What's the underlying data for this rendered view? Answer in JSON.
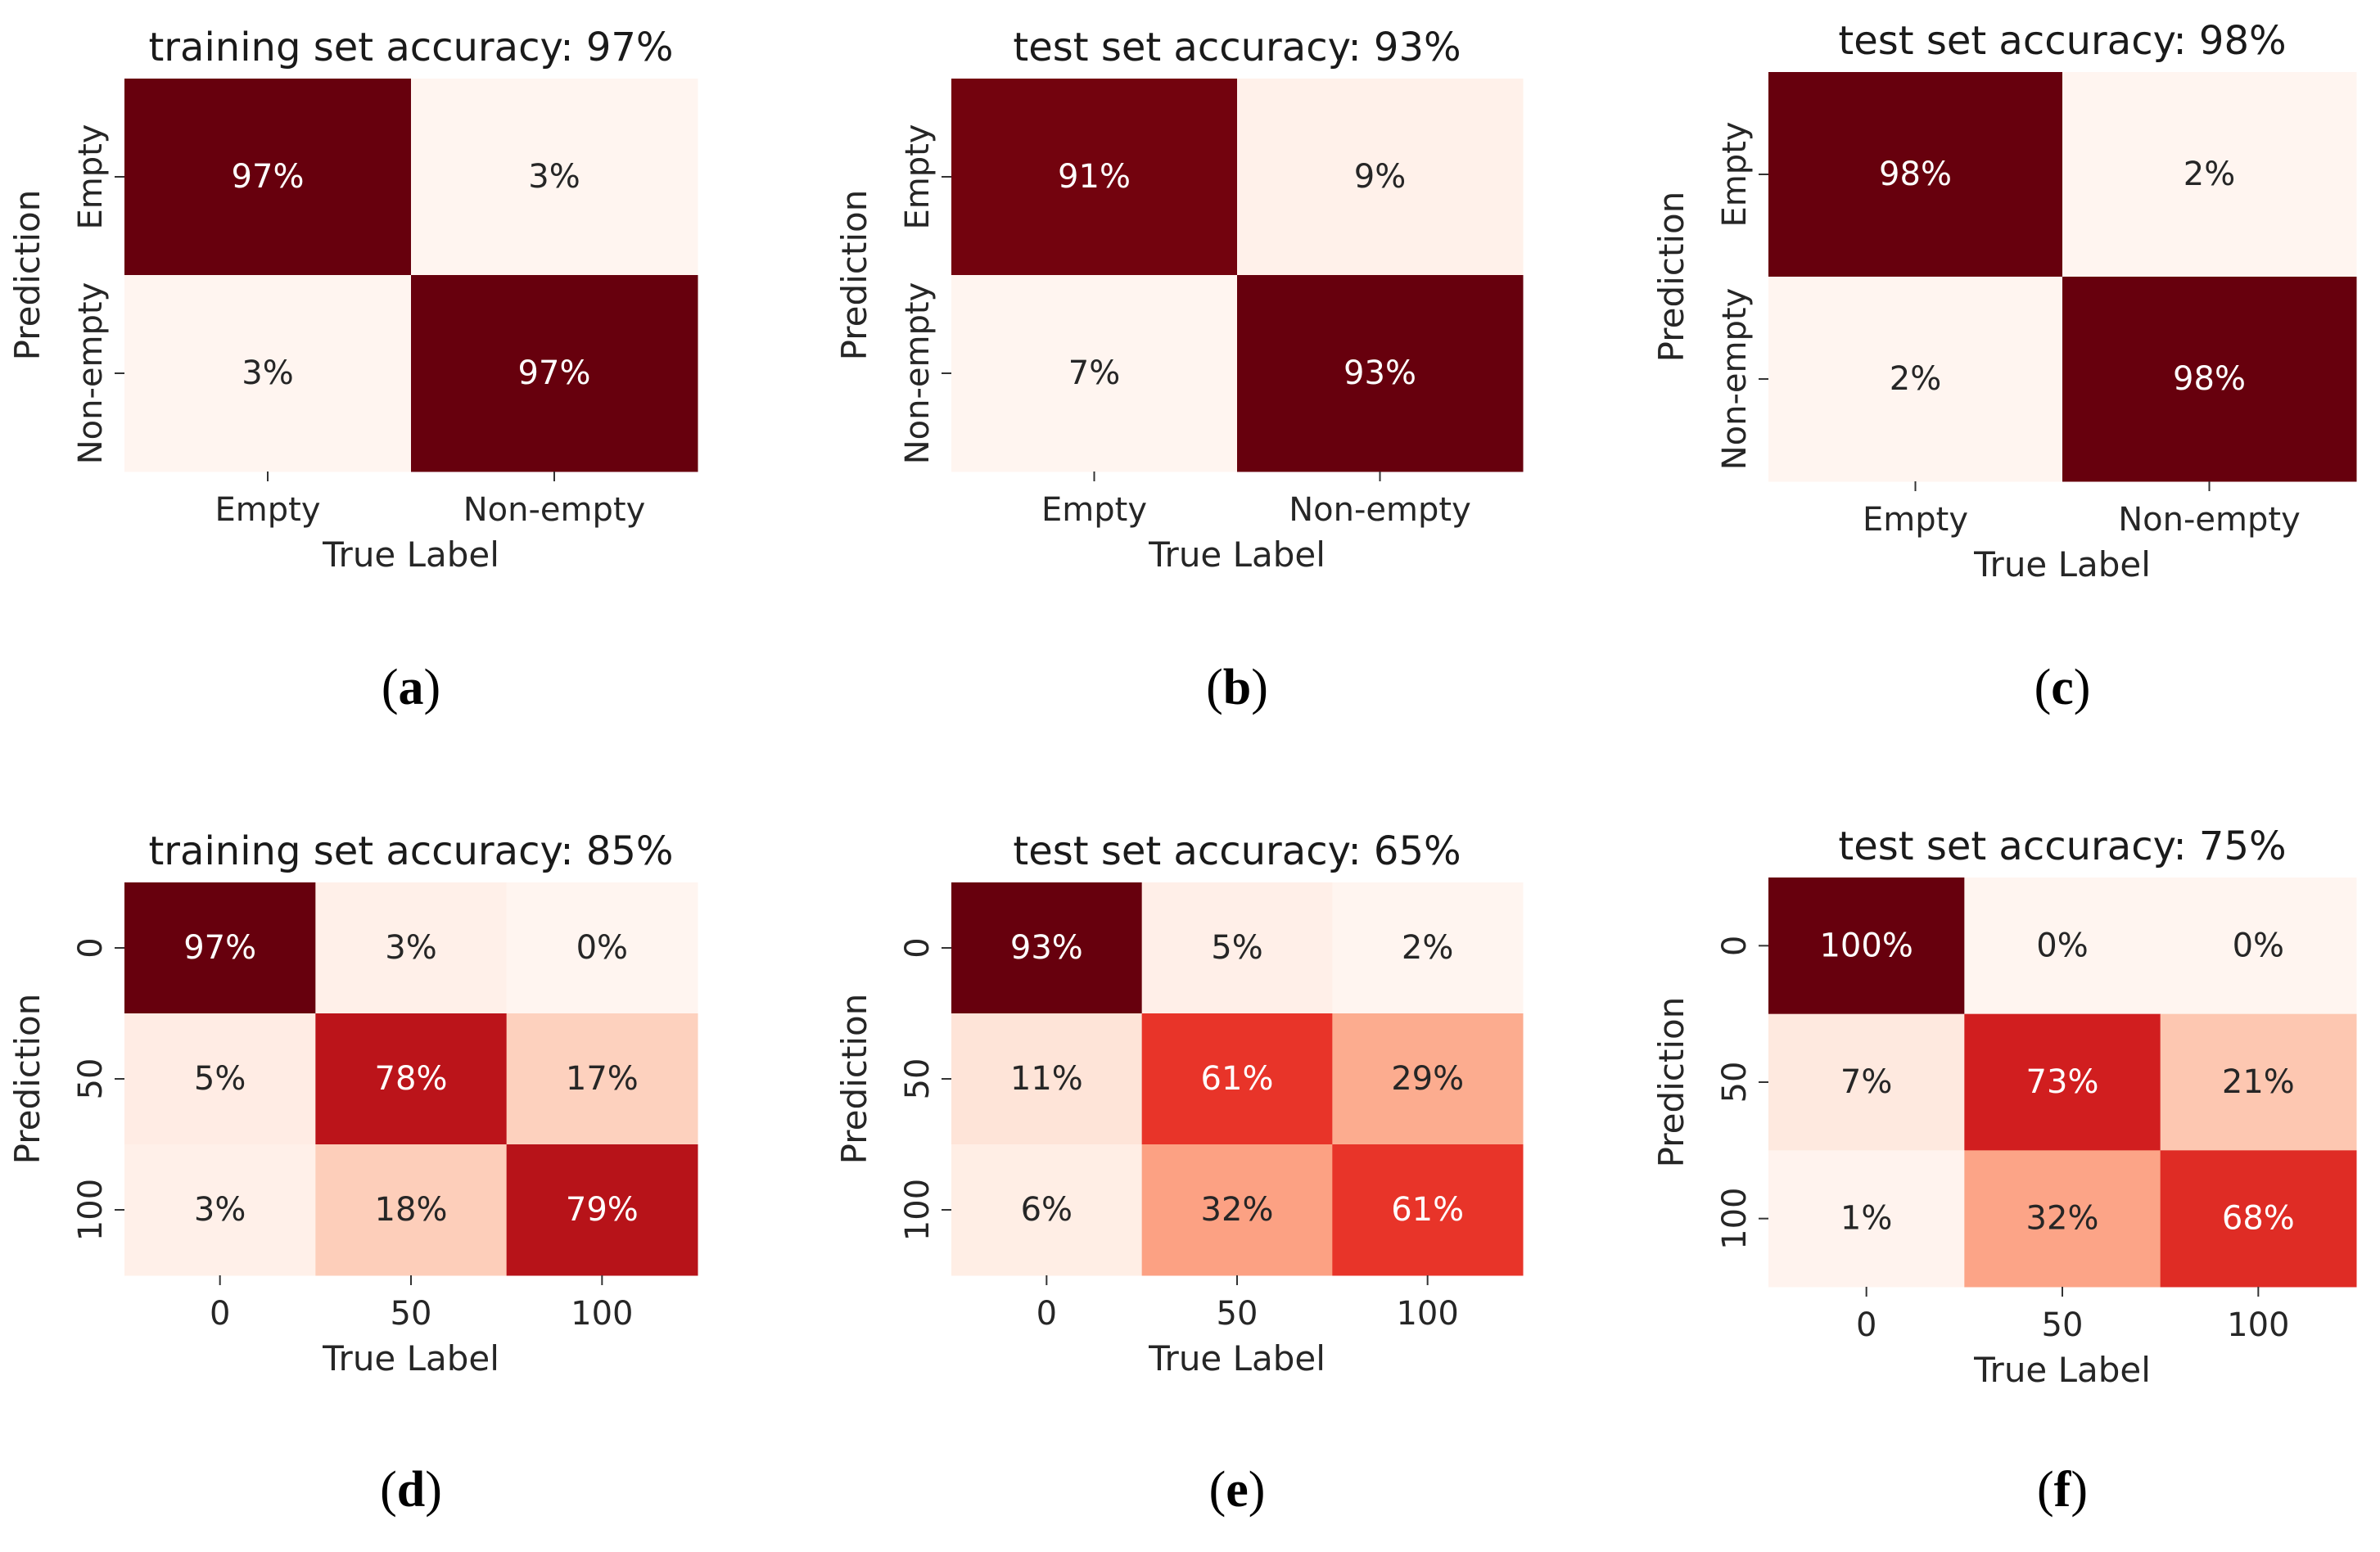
{
  "chart_data": [
    {
      "type": "heatmap",
      "panel": "a",
      "title": "training set accuracy: 97%",
      "xlabel": "True Label",
      "ylabel": "Prediction",
      "x_categories": [
        "Empty",
        "Non-empty"
      ],
      "y_categories": [
        "Empty",
        "Non-empty"
      ],
      "values": [
        [
          97,
          3
        ],
        [
          3,
          97
        ]
      ],
      "labels": [
        [
          "97%",
          "3%"
        ],
        [
          "3%",
          "97%"
        ]
      ]
    },
    {
      "type": "heatmap",
      "panel": "b",
      "title": "test set accuracy: 93%",
      "xlabel": "True Label",
      "ylabel": "Prediction",
      "x_categories": [
        "Empty",
        "Non-empty"
      ],
      "y_categories": [
        "Empty",
        "Non-empty"
      ],
      "values": [
        [
          91,
          9
        ],
        [
          7,
          93
        ]
      ],
      "labels": [
        [
          "91%",
          "9%"
        ],
        [
          "7%",
          "93%"
        ]
      ]
    },
    {
      "type": "heatmap",
      "panel": "c",
      "title": "test set accuracy: 98%",
      "xlabel": "True Label",
      "ylabel": "Prediction",
      "x_categories": [
        "Empty",
        "Non-empty"
      ],
      "y_categories": [
        "Empty",
        "Non-empty"
      ],
      "values": [
        [
          98,
          2
        ],
        [
          2,
          98
        ]
      ],
      "labels": [
        [
          "98%",
          "2%"
        ],
        [
          "2%",
          "98%"
        ]
      ]
    },
    {
      "type": "heatmap",
      "panel": "d",
      "title": "training set accuracy: 85%",
      "xlabel": "True Label",
      "ylabel": "Prediction",
      "x_categories": [
        "0",
        "50",
        "100"
      ],
      "y_categories": [
        "0",
        "50",
        "100"
      ],
      "values": [
        [
          97,
          3,
          0
        ],
        [
          5,
          78,
          17
        ],
        [
          3,
          18,
          79
        ]
      ],
      "labels": [
        [
          "97%",
          "3%",
          "0%"
        ],
        [
          "5%",
          "78%",
          "17%"
        ],
        [
          "3%",
          "18%",
          "79%"
        ]
      ]
    },
    {
      "type": "heatmap",
      "panel": "e",
      "title": "test set accuracy: 65%",
      "xlabel": "True Label",
      "ylabel": "Prediction",
      "x_categories": [
        "0",
        "50",
        "100"
      ],
      "y_categories": [
        "0",
        "50",
        "100"
      ],
      "values": [
        [
          93,
          5,
          2
        ],
        [
          11,
          61,
          29
        ],
        [
          6,
          32,
          61
        ]
      ],
      "labels": [
        [
          "93%",
          "5%",
          "2%"
        ],
        [
          "11%",
          "61%",
          "29%"
        ],
        [
          "6%",
          "32%",
          "61%"
        ]
      ]
    },
    {
      "type": "heatmap",
      "panel": "f",
      "title": "test set accuracy: 75%",
      "xlabel": "True Label",
      "ylabel": "Prediction",
      "x_categories": [
        "0",
        "50",
        "100"
      ],
      "y_categories": [
        "0",
        "50",
        "100"
      ],
      "values": [
        [
          100,
          0,
          0
        ],
        [
          7,
          73,
          21
        ],
        [
          1,
          32,
          68
        ]
      ],
      "labels": [
        [
          "100%",
          "0%",
          "0%"
        ],
        [
          "7%",
          "73%",
          "21%"
        ],
        [
          "1%",
          "32%",
          "68%"
        ]
      ]
    }
  ],
  "captions": [
    "(a)",
    "(b)",
    "(c)",
    "(d)",
    "(e)",
    "(f)"
  ],
  "colors": {
    "colormap": [
      "#fff5f0",
      "#fee0d2",
      "#fcbba1",
      "#fc9272",
      "#fb6a4a",
      "#ef3b2c",
      "#cb181d",
      "#a50f15",
      "#67000d"
    ],
    "text_dark": "#262626",
    "text_light": "#ffffff"
  }
}
